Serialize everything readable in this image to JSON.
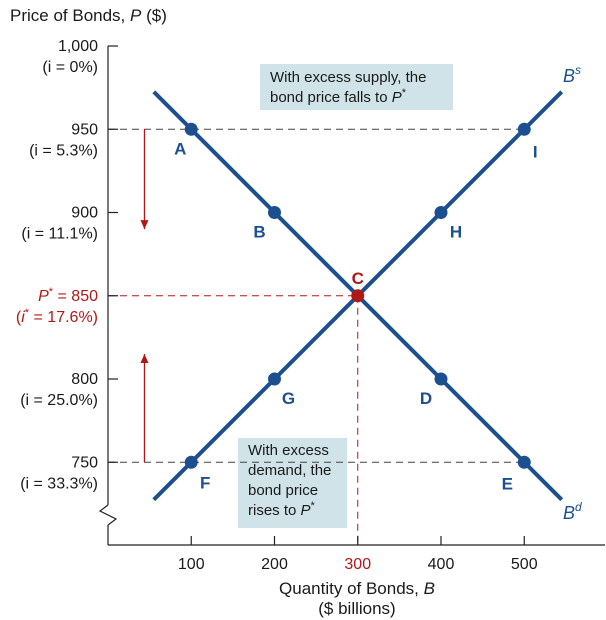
{
  "chart_data": {
    "type": "line",
    "ylabel": "Price of Bonds, P ($)",
    "xlabel_line1": "Quantity of Bonds, B",
    "xlabel_line2": "($ billions)",
    "x_ticks": [
      "100",
      "200",
      "300",
      "400",
      "500"
    ],
    "x_tick_values": [
      100,
      200,
      300,
      400,
      500
    ],
    "y_ticks": [
      {
        "value": 1000,
        "label": "1,000",
        "sub": "(i = 0%)"
      },
      {
        "value": 950,
        "label": "950",
        "sub": "(i = 5.3%)"
      },
      {
        "value": 900,
        "label": "900",
        "sub": "(i = 11.1%)"
      },
      {
        "value": 850,
        "label": "P* = 850",
        "sub": "(i* = 17.6%)",
        "highlight": true
      },
      {
        "value": 800,
        "label": "800",
        "sub": "(i = 25.0%)"
      },
      {
        "value": 750,
        "label": "750",
        "sub": "(i = 33.3%)"
      }
    ],
    "xlim": [
      0,
      600
    ],
    "ylim": [
      730,
      1000
    ],
    "axis_break": true,
    "series": [
      {
        "name": "B^d",
        "label_main": "B",
        "label_sup": "d",
        "color": "#1c4f8f",
        "line": [
          {
            "x": 55,
            "y": 972.5
          },
          {
            "x": 545,
            "y": 727.5
          }
        ],
        "points": [
          {
            "label": "A",
            "x": 100,
            "y": 950
          },
          {
            "label": "B",
            "x": 200,
            "y": 900
          },
          {
            "label": "C",
            "x": 300,
            "y": 850
          },
          {
            "label": "D",
            "x": 400,
            "y": 800
          },
          {
            "label": "E",
            "x": 500,
            "y": 750
          }
        ]
      },
      {
        "name": "B^s",
        "label_main": "B",
        "label_sup": "s",
        "color": "#1c4f8f",
        "line": [
          {
            "x": 55,
            "y": 727.5
          },
          {
            "x": 545,
            "y": 972.5
          }
        ],
        "points": [
          {
            "label": "F",
            "x": 100,
            "y": 750
          },
          {
            "label": "G",
            "x": 200,
            "y": 800
          },
          {
            "label": "C",
            "x": 300,
            "y": 850
          },
          {
            "label": "H",
            "x": 400,
            "y": 900
          },
          {
            "label": "I",
            "x": 500,
            "y": 950
          }
        ]
      }
    ],
    "equilibrium": {
      "label": "C",
      "x": 300,
      "y": 850,
      "color": "#b01818"
    },
    "guides": [
      {
        "y": 950,
        "x_from": 0,
        "x_to": 500
      },
      {
        "y": 750,
        "x_from": 0,
        "x_to": 500
      }
    ],
    "arrows": [
      {
        "direction": "down",
        "x": 45,
        "from_y": 950,
        "to_y": 890
      },
      {
        "direction": "up",
        "x": 45,
        "from_y": 750,
        "to_y": 815
      }
    ],
    "annotations": [
      {
        "lines": [
          "With excess supply, the",
          "bond price falls to P*"
        ]
      },
      {
        "lines": [
          "With excess",
          "demand, the",
          "bond price",
          "rises to P*"
        ]
      }
    ],
    "colors": {
      "curve": "#1c4f8f",
      "equilibrium": "#b01818",
      "annotation_box": "#cfe3e8",
      "axis": "#222222",
      "guide": "#444444"
    }
  }
}
